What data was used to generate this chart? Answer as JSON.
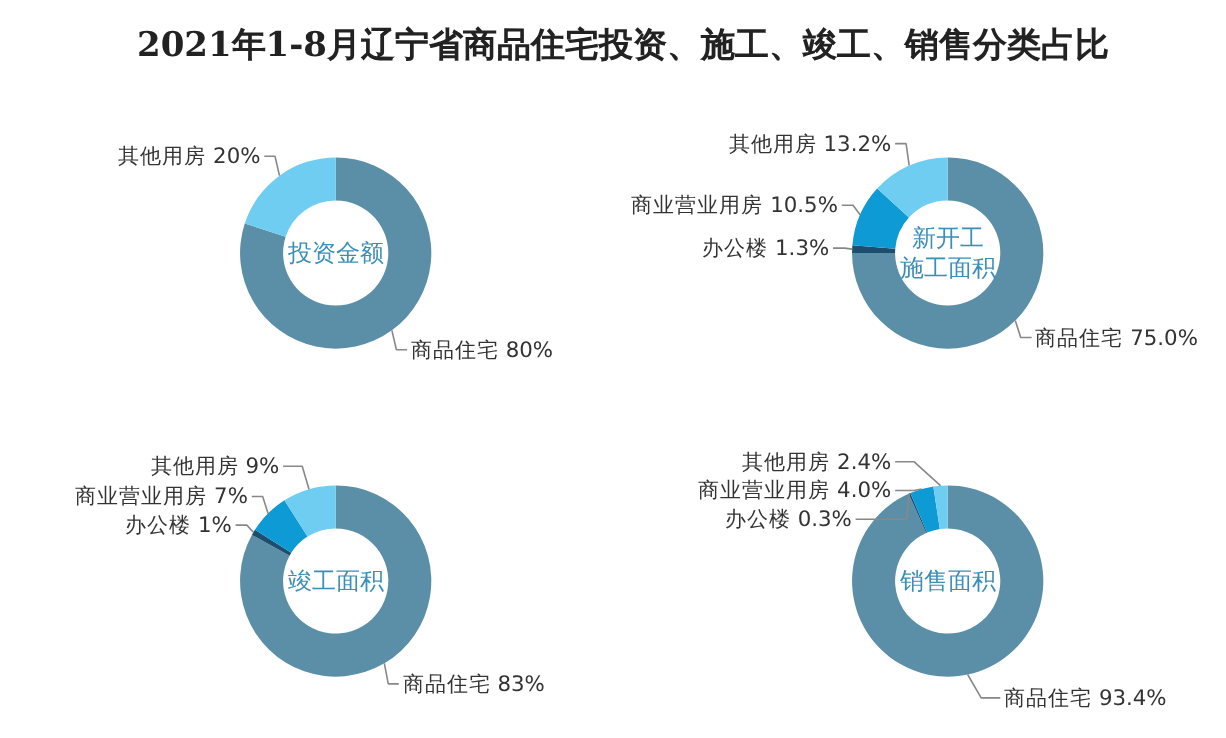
{
  "chart_data": [
    {
      "type": "donut",
      "title": "投资金额",
      "annotations": [
        "2021年1-8月辽宁省商品住宅投资、施工、竣工、销售分类占比"
      ],
      "categories": [
        "商品住宅",
        "其他用房"
      ],
      "values": [
        80,
        20
      ],
      "value_labels": [
        "80%",
        "20%"
      ],
      "colors": [
        "#5b8fa8",
        "#6fcdf2"
      ]
    },
    {
      "type": "donut",
      "title": "新开工施工面积",
      "categories": [
        "商品住宅",
        "办公楼",
        "商业营业用房",
        "其他用房"
      ],
      "values": [
        75.0,
        1.3,
        10.5,
        13.2
      ],
      "value_labels": [
        "75.0%",
        "1.3%",
        "10.5%",
        "13.2%"
      ],
      "colors": [
        "#5b8fa8",
        "#1e4e6e",
        "#0e9ad4",
        "#6fcdf2"
      ]
    },
    {
      "type": "donut",
      "title": "竣工面积",
      "categories": [
        "商品住宅",
        "办公楼",
        "商业营业用房",
        "其他用房"
      ],
      "values": [
        83,
        1,
        7,
        9
      ],
      "value_labels": [
        "83%",
        "1%",
        "7%",
        "9%"
      ],
      "colors": [
        "#5b8fa8",
        "#1e4e6e",
        "#0e9ad4",
        "#6fcdf2"
      ]
    },
    {
      "type": "donut",
      "title": "销售面积",
      "categories": [
        "商品住宅",
        "办公楼",
        "商业营业用房",
        "其他用房"
      ],
      "values": [
        93.4,
        0.3,
        4.0,
        2.4
      ],
      "value_labels": [
        "93.4%",
        "0.3%",
        "4.0%",
        "2.4%"
      ],
      "colors": [
        "#5b8fa8",
        "#1e4e6e",
        "#0e9ad4",
        "#6fcdf2"
      ]
    }
  ]
}
